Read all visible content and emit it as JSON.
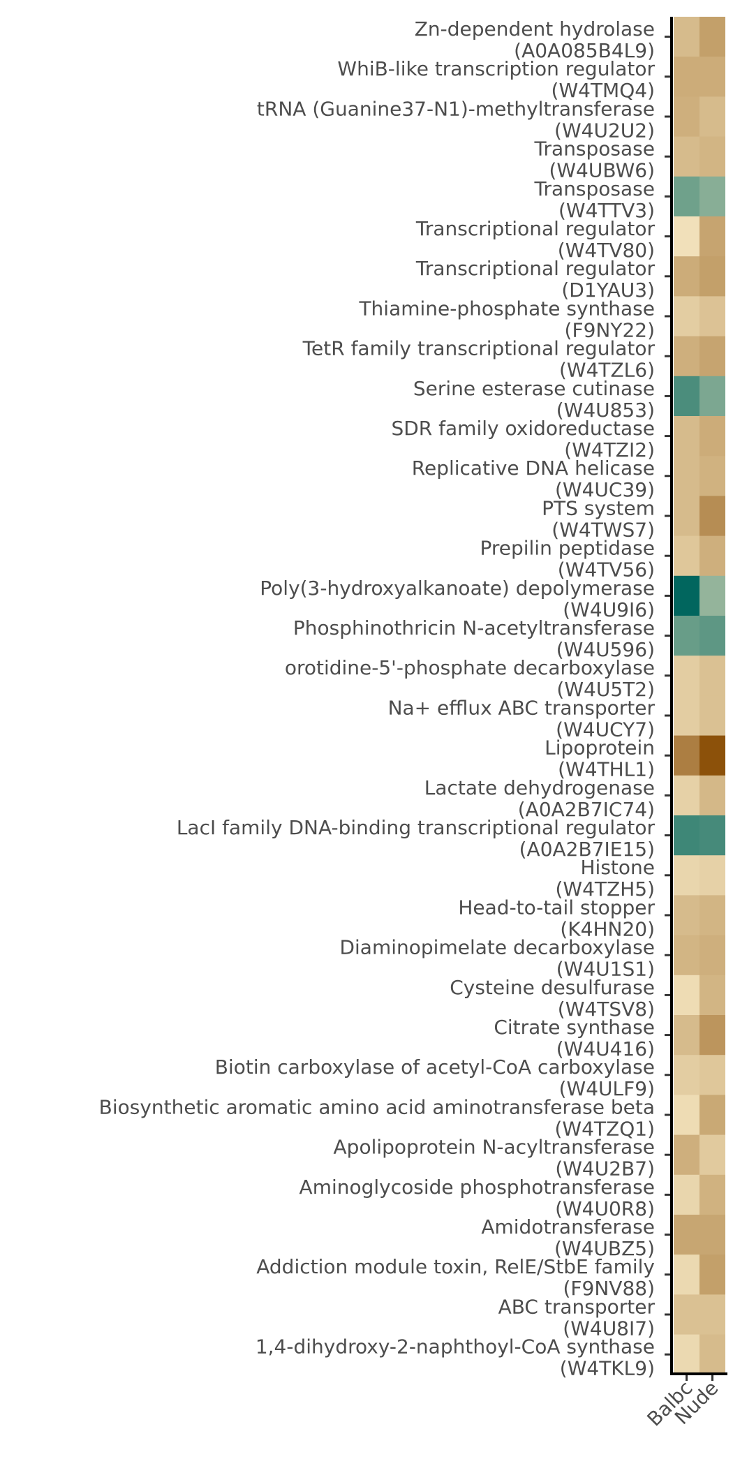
{
  "chart_data": {
    "type": "heatmap",
    "title": "",
    "xlabel": "",
    "ylabel": "",
    "columns": [
      "Balbc",
      "Nude"
    ],
    "legend": "none",
    "grid": false,
    "color_scale": {
      "type": "diverging",
      "low_color": "#8c510a",
      "mid_color": "#f6e8c3",
      "high_color": "#01665e",
      "range": [
        -1,
        1
      ]
    },
    "rows": [
      {
        "name": "Zn-dependent hydrolase",
        "id": "(A0A085B4L9)",
        "values": [
          -0.3,
          -0.48
        ]
      },
      {
        "name": "WhiB-like transcription regulator",
        "id": "(W4TMQ4)",
        "values": [
          -0.4,
          -0.4
        ]
      },
      {
        "name": "tRNA (Guanine37-N1)-methyltransferase",
        "id": "(W4U2U2)",
        "values": [
          -0.38,
          -0.3
        ]
      },
      {
        "name": "Transposase",
        "id": "(W4UBW6)",
        "values": [
          -0.3,
          -0.34
        ]
      },
      {
        "name": "Transposase",
        "id": "(W4TTV3)",
        "values": [
          0.55,
          0.45
        ]
      },
      {
        "name": "Transcriptional regulator",
        "id": "(W4TV80)",
        "values": [
          -0.05,
          -0.45
        ]
      },
      {
        "name": "Transcriptional regulator",
        "id": "(D1YAU3)",
        "values": [
          -0.4,
          -0.48
        ]
      },
      {
        "name": "Thiamine-phosphate synthase",
        "id": "(F9NY22)",
        "values": [
          -0.18,
          -0.25
        ]
      },
      {
        "name": "TetR family transcriptional regulator",
        "id": "(W4TZL6)",
        "values": [
          -0.38,
          -0.45
        ]
      },
      {
        "name": "Serine esterase cutinase",
        "id": "(W4U853)",
        "values": [
          0.7,
          0.5
        ]
      },
      {
        "name": "SDR family oxidoreductase",
        "id": "(W4TZI2)",
        "values": [
          -0.3,
          -0.4
        ]
      },
      {
        "name": "Replicative DNA helicase",
        "id": "(W4UC39)",
        "values": [
          -0.3,
          -0.36
        ]
      },
      {
        "name": "PTS system",
        "id": "(W4TWS7)",
        "values": [
          -0.3,
          -0.6
        ]
      },
      {
        "name": "Prepilin peptidase",
        "id": "(W4TV56)",
        "values": [
          -0.22,
          -0.38
        ]
      },
      {
        "name": "Poly(3-hydroxyalkanoate) depolymerase",
        "id": "(W4U9I6)",
        "values": [
          1.0,
          0.4
        ]
      },
      {
        "name": "Phosphinothricin N-acetyltransferase",
        "id": "(W4U596)",
        "values": [
          0.58,
          0.62
        ]
      },
      {
        "name": "orotidine-5'-phosphate decarboxylase",
        "id": "(W4U5T2)",
        "values": [
          -0.18,
          -0.26
        ]
      },
      {
        "name": "Na+ efflux ABC transporter",
        "id": "(W4UCY7)",
        "values": [
          -0.18,
          -0.26
        ]
      },
      {
        "name": "Lipoprotein",
        "id": "(W4THL1)",
        "values": [
          -0.7,
          -1.0
        ]
      },
      {
        "name": "Lactate dehydrogenase",
        "id": "(A0A2B7IC74)",
        "values": [
          -0.15,
          -0.32
        ]
      },
      {
        "name": "LacI family DNA-binding transcriptional regulator",
        "id": "(A0A2B7IE15)",
        "values": [
          0.75,
          0.72
        ]
      },
      {
        "name": "Histone",
        "id": "(W4TZH5)",
        "values": [
          -0.12,
          -0.15
        ]
      },
      {
        "name": "Head-to-tail stopper",
        "id": "(K4HN20)",
        "values": [
          -0.3,
          -0.34
        ]
      },
      {
        "name": "Diaminopimelate decarboxylase",
        "id": "(W4U1S1)",
        "values": [
          -0.34,
          -0.38
        ]
      },
      {
        "name": "Cysteine desulfurase",
        "id": "(W4TSV8)",
        "values": [
          -0.08,
          -0.34
        ]
      },
      {
        "name": "Citrate synthase",
        "id": "(W4U416)",
        "values": [
          -0.3,
          -0.55
        ]
      },
      {
        "name": "Biotin carboxylase of acetyl-CoA carboxylase",
        "id": "(W4ULF9)",
        "values": [
          -0.18,
          -0.22
        ]
      },
      {
        "name": "Biosynthetic aromatic amino acid aminotransferase beta",
        "id": "(W4TZQ1)",
        "values": [
          -0.08,
          -0.42
        ]
      },
      {
        "name": "Apolipoprotein N-acyltransferase",
        "id": "(W4U2B7)",
        "values": [
          -0.38,
          -0.2
        ]
      },
      {
        "name": "Aminoglycoside phosphotransferase",
        "id": "(W4U0R8)",
        "values": [
          -0.12,
          -0.36
        ]
      },
      {
        "name": "Amidotransferase",
        "id": "(W4UBZ5)",
        "values": [
          -0.44,
          -0.44
        ]
      },
      {
        "name": "Addiction module toxin, RelE/StbE family",
        "id": "(F9NV88)",
        "values": [
          -0.1,
          -0.48
        ]
      },
      {
        "name": "ABC transporter",
        "id": "(W4U8I7)",
        "values": [
          -0.26,
          -0.26
        ]
      },
      {
        "name": "1,4-dihydroxy-2-naphthoyl-CoA synthase",
        "id": "(W4TKL9)",
        "values": [
          -0.1,
          -0.3
        ]
      }
    ]
  }
}
